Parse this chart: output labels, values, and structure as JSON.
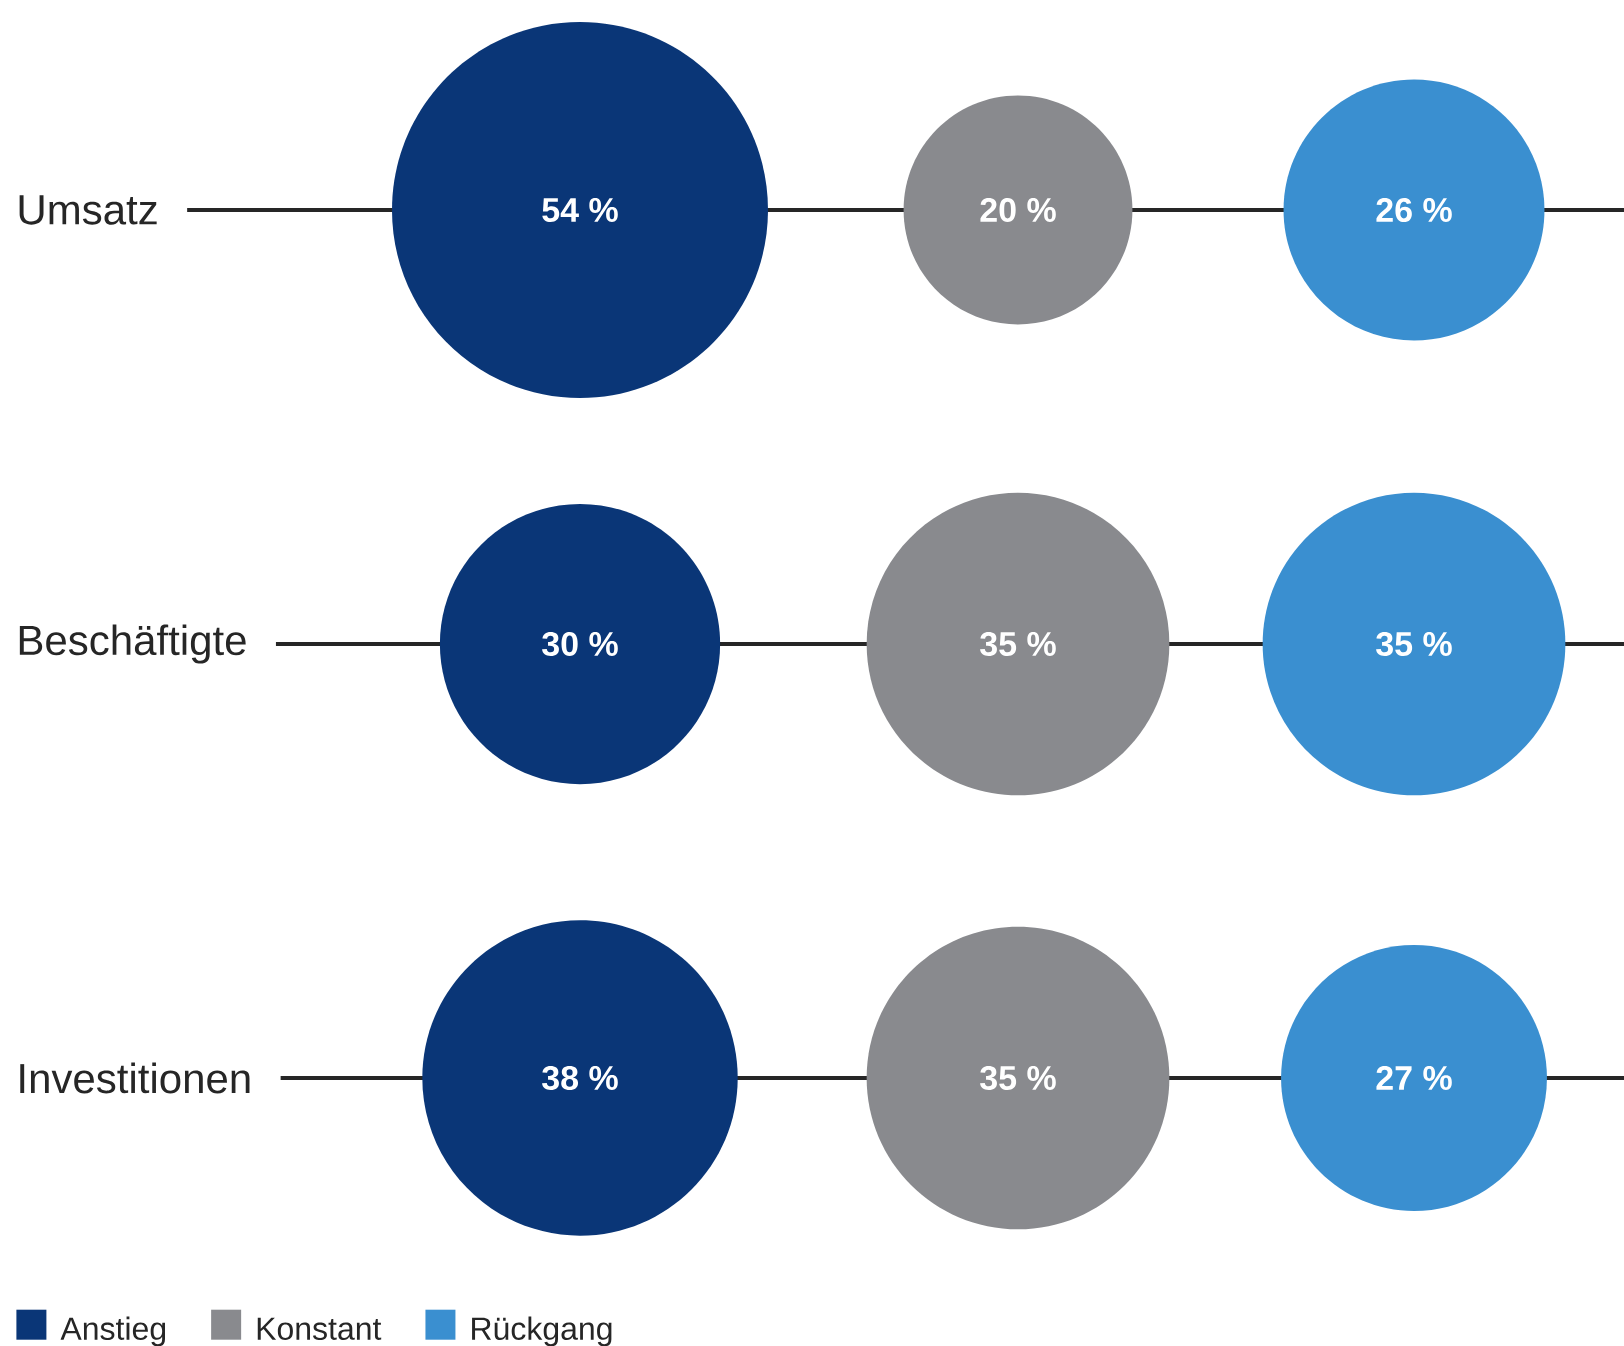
{
  "chart_data": {
    "type": "other",
    "categories": [
      "Umsatz",
      "Beschäftigte",
      "Investitionen"
    ],
    "series": [
      {
        "name": "Anstieg",
        "color": "#0a3677",
        "values": [
          54,
          30,
          38
        ],
        "value_labels": [
          "54 %",
          "30 %",
          "38 %"
        ]
      },
      {
        "name": "Konstant",
        "color": "#898a8e",
        "values": [
          20,
          35,
          35
        ],
        "value_labels": [
          "20 %",
          "35 %",
          "35 %"
        ]
      },
      {
        "name": "Rückgang",
        "color": "#3a8fd0",
        "values": [
          26,
          35,
          27
        ],
        "value_labels": [
          "26 %",
          "35 %",
          "27 %"
        ]
      }
    ],
    "legend": "bottom left"
  }
}
